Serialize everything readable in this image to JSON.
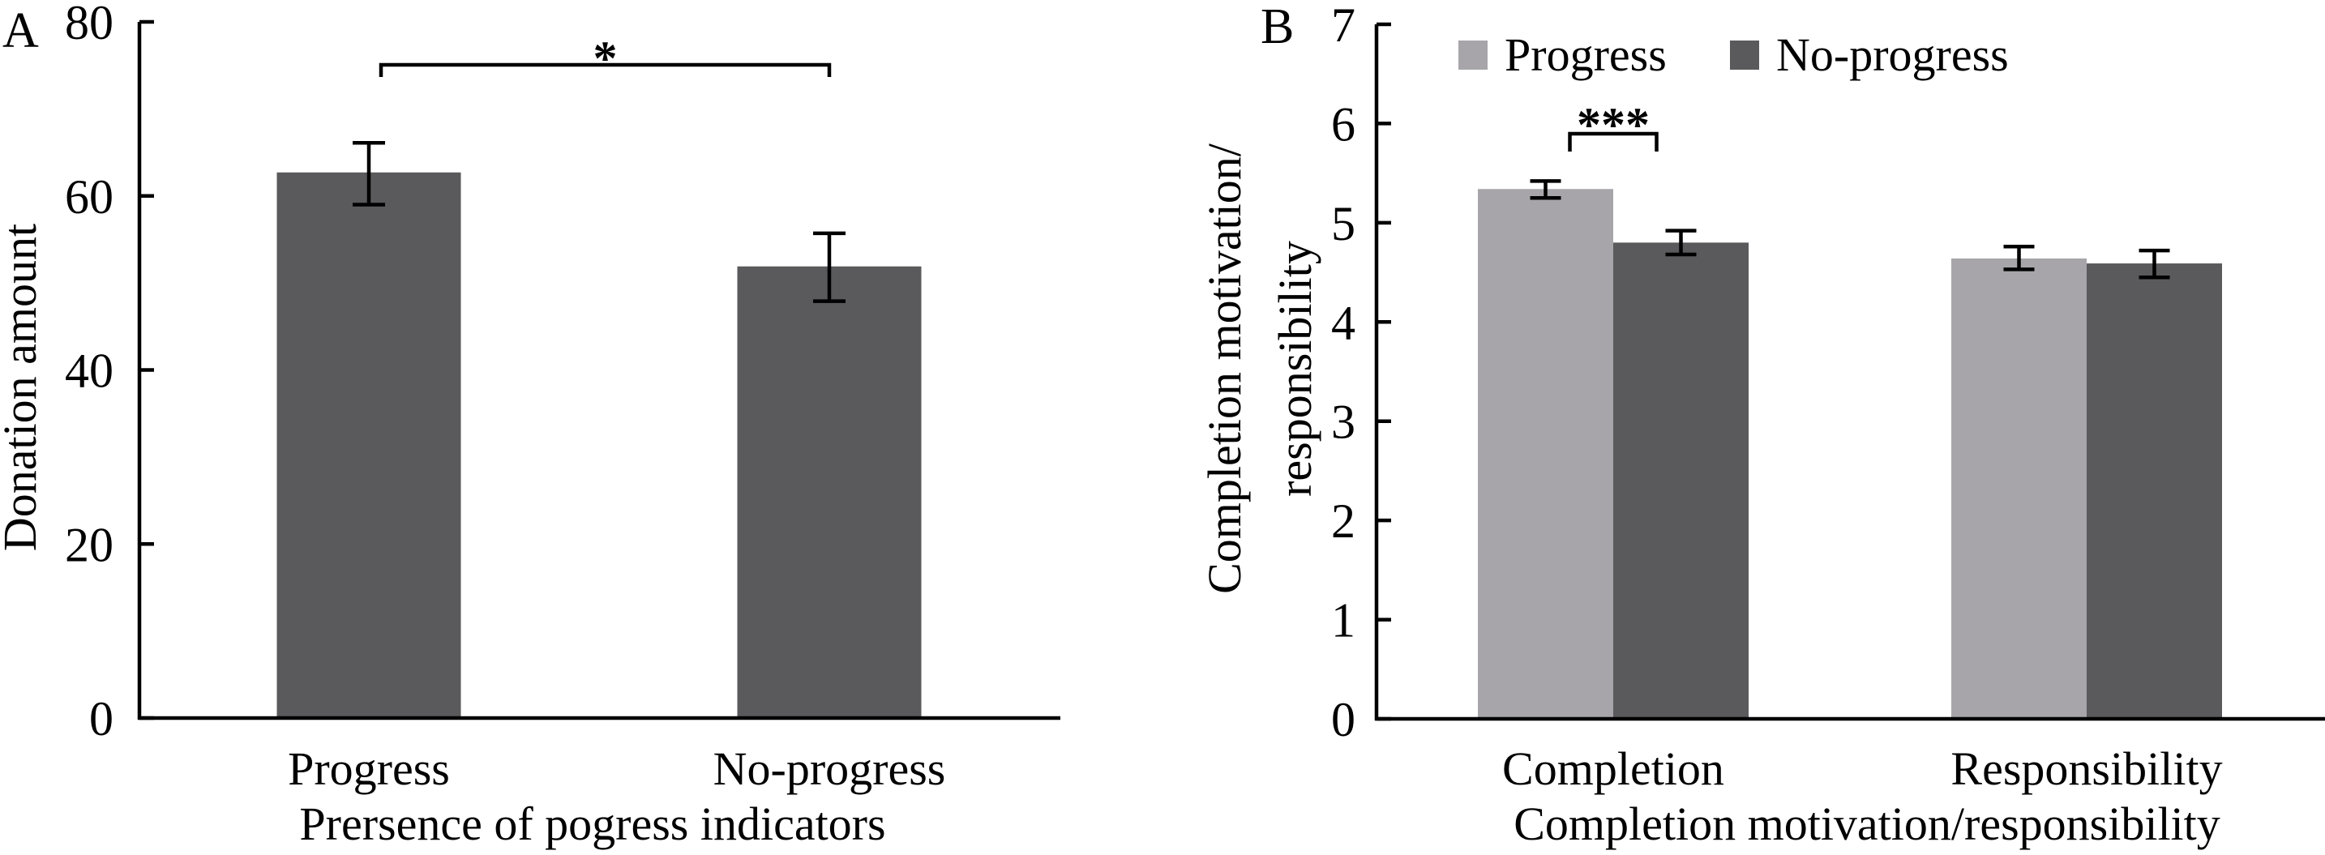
{
  "chart_data": [
    {
      "panel": "A",
      "type": "bar",
      "title": "",
      "xlabel": "Prersence of pogress indicators",
      "ylabel": "Donation amount",
      "ylim": [
        0,
        80
      ],
      "yticks": [
        0,
        20,
        40,
        60,
        80
      ],
      "grid": false,
      "legend": null,
      "categories": [
        "Progress",
        "No-progress"
      ],
      "series": [
        {
          "name": "Donation amount",
          "color": "#5a595b",
          "values": [
            62.7,
            51.9
          ],
          "error_low": [
            59.0,
            47.9
          ],
          "error_high": [
            66.1,
            55.7
          ]
        }
      ],
      "annotations": [
        {
          "type": "significance",
          "label": "*",
          "between": [
            "Progress",
            "No-progress"
          ]
        }
      ]
    },
    {
      "panel": "B",
      "type": "bar",
      "title": "",
      "xlabel": "Completion motivation/responsibility",
      "ylabel": "Completion motivation/\nresponsibility",
      "ylabel_lines": [
        "Completion motivation/",
        "responsibility"
      ],
      "ylim": [
        0,
        7
      ],
      "yticks": [
        0,
        1,
        2,
        3,
        4,
        5,
        6,
        7
      ],
      "grid": false,
      "legend": "top-left",
      "categories": [
        "Completion",
        "Responsibility"
      ],
      "series": [
        {
          "name": "Progress",
          "color": "#a7a5aa",
          "values": [
            5.34,
            4.64
          ],
          "error_low": [
            5.25,
            4.53
          ],
          "error_high": [
            5.42,
            4.76
          ]
        },
        {
          "name": "No-progress",
          "color": "#5a595b",
          "values": [
            4.8,
            4.59
          ],
          "error_low": [
            4.68,
            4.45
          ],
          "error_high": [
            4.92,
            4.72
          ]
        }
      ],
      "annotations": [
        {
          "type": "significance",
          "label": "***",
          "category": "Completion",
          "between": [
            "Progress",
            "No-progress"
          ]
        }
      ]
    }
  ]
}
